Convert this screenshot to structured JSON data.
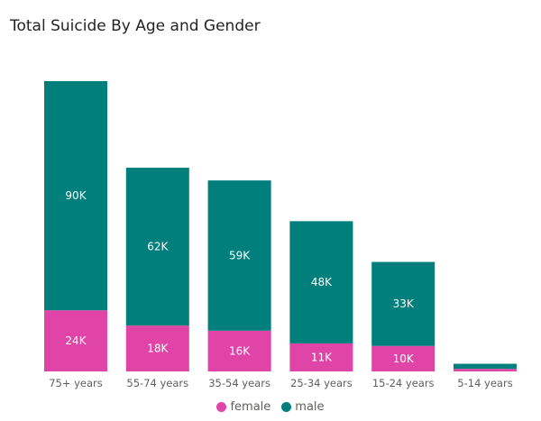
{
  "title": "Total Suicide By Age and Gender",
  "colors": {
    "female": "#E044A7",
    "male": "#017F7D"
  },
  "legend": {
    "female": "female",
    "male": "male"
  },
  "chart_data": {
    "type": "bar",
    "stacked": true,
    "title": "Total Suicide By Age and Gender",
    "categories": [
      "75+ years",
      "55-74 years",
      "35-54 years",
      "25-34 years",
      "15-24 years",
      "5-14 years"
    ],
    "series": [
      {
        "name": "female",
        "values": [
          24,
          18,
          16,
          11,
          10,
          1
        ],
        "labels": [
          "24K",
          "18K",
          "16K",
          "11K",
          "10K",
          ""
        ]
      },
      {
        "name": "male",
        "values": [
          90,
          62,
          59,
          48,
          33,
          2
        ],
        "labels": [
          "90K",
          "62K",
          "59K",
          "48K",
          "33K",
          ""
        ]
      }
    ],
    "unit": "K",
    "ylim": [
      0,
      114
    ],
    "grid": false,
    "legend_position": "bottom-center"
  }
}
